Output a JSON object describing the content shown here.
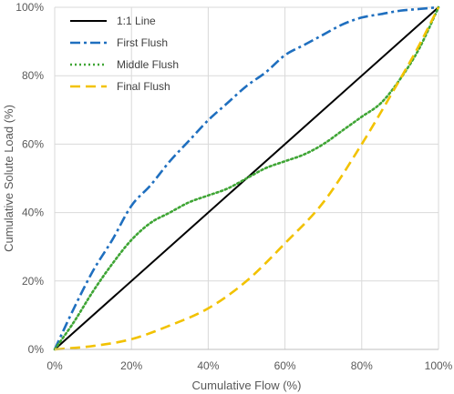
{
  "chart_data": {
    "type": "line",
    "xlabel": "Cumulative Flow (%)",
    "ylabel": "Cumulative Solute Load (%)",
    "xlim": [
      0,
      100
    ],
    "ylim": [
      0,
      100
    ],
    "x_ticks": [
      "0%",
      "20%",
      "40%",
      "60%",
      "80%",
      "100%"
    ],
    "y_ticks": [
      "0%",
      "20%",
      "40%",
      "60%",
      "80%",
      "100%"
    ],
    "grid": true,
    "legend_position": "top-left",
    "series": [
      {
        "name": "1:1 Line",
        "color": "#000000",
        "dash": "solid",
        "x": [
          0,
          100
        ],
        "y": [
          0,
          100
        ]
      },
      {
        "name": "First Flush",
        "color": "#1f6fbf",
        "dash": "dash-dot",
        "x": [
          0,
          5,
          10,
          15,
          20,
          25,
          30,
          35,
          40,
          45,
          50,
          55,
          60,
          65,
          70,
          75,
          80,
          85,
          90,
          95,
          100
        ],
        "y": [
          0,
          12,
          23,
          32,
          42,
          48,
          55,
          61,
          67,
          72,
          77,
          81,
          86,
          89,
          92,
          95,
          97,
          98,
          99,
          99.5,
          100
        ]
      },
      {
        "name": "Middle Flush",
        "color": "#3fa535",
        "dash": "dotted",
        "x": [
          0,
          5,
          10,
          15,
          20,
          25,
          30,
          35,
          40,
          45,
          50,
          55,
          60,
          65,
          70,
          75,
          80,
          85,
          90,
          95,
          100
        ],
        "y": [
          0,
          8,
          17,
          25,
          32,
          37,
          40,
          43,
          45,
          47,
          50,
          53,
          55,
          57,
          60,
          64,
          68,
          72,
          79,
          88,
          100
        ]
      },
      {
        "name": "Final Flush",
        "color": "#f2c200",
        "dash": "dashed",
        "x": [
          0,
          10,
          20,
          30,
          40,
          50,
          60,
          70,
          80,
          90,
          95,
          100
        ],
        "y": [
          0,
          1,
          3,
          7,
          12,
          20,
          31,
          43,
          60,
          79,
          89,
          100
        ]
      }
    ]
  }
}
